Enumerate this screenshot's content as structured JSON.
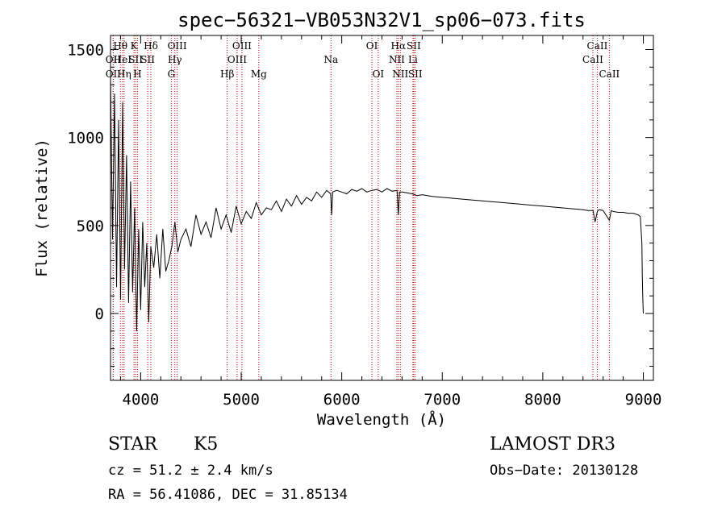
{
  "chart_data": {
    "type": "line",
    "title": "spec−56321−VB053N32V1_sp06−073.fits",
    "xlabel": "Wavelength (Å)",
    "ylabel": "Flux (relative)",
    "xlim": [
      3700,
      9100
    ],
    "ylim": [
      -380,
      1580
    ],
    "xticks": [
      4000,
      5000,
      6000,
      7000,
      8000,
      9000
    ],
    "xtick_labels": [
      "4000",
      "5000",
      "6000",
      "7000",
      "8000",
      "9000"
    ],
    "yticks": [
      0,
      500,
      1000,
      1500
    ],
    "ytick_labels": [
      "0",
      "500",
      "1000",
      "1500"
    ],
    "series": [
      {
        "name": "spectrum",
        "x": [
          3700,
          3720,
          3740,
          3760,
          3780,
          3800,
          3820,
          3840,
          3860,
          3880,
          3900,
          3920,
          3940,
          3960,
          3980,
          4000,
          4020,
          4040,
          4060,
          4080,
          4100,
          4130,
          4160,
          4190,
          4220,
          4250,
          4280,
          4310,
          4340,
          4370,
          4400,
          4450,
          4500,
          4550,
          4600,
          4650,
          4700,
          4750,
          4800,
          4850,
          4900,
          4950,
          5000,
          5050,
          5100,
          5150,
          5200,
          5250,
          5300,
          5350,
          5400,
          5450,
          5500,
          5550,
          5600,
          5650,
          5700,
          5750,
          5800,
          5850,
          5890,
          5900,
          5910,
          5950,
          6000,
          6050,
          6100,
          6150,
          6200,
          6250,
          6300,
          6350,
          6400,
          6450,
          6500,
          6550,
          6563,
          6575,
          6600,
          6650,
          6700,
          6750,
          6800,
          6900,
          7000,
          7100,
          7200,
          7300,
          7400,
          7500,
          7600,
          7700,
          7800,
          7900,
          8000,
          8100,
          8200,
          8300,
          8400,
          8450,
          8500,
          8520,
          8542,
          8560,
          8600,
          8662,
          8680,
          8700,
          8750,
          8800,
          8850,
          8900,
          8950,
          8970,
          8985,
          8990,
          8995,
          9000
        ],
        "y": [
          1350,
          420,
          1250,
          150,
          1100,
          80,
          1200,
          250,
          900,
          60,
          750,
          120,
          600,
          -100,
          480,
          20,
          520,
          150,
          400,
          -50,
          380,
          260,
          450,
          200,
          480,
          240,
          300,
          380,
          520,
          350,
          420,
          480,
          380,
          560,
          450,
          520,
          430,
          600,
          480,
          560,
          460,
          610,
          510,
          580,
          540,
          630,
          560,
          600,
          590,
          640,
          580,
          650,
          610,
          670,
          620,
          660,
          640,
          690,
          660,
          700,
          680,
          560,
          690,
          700,
          690,
          680,
          705,
          695,
          710,
          690,
          700,
          705,
          690,
          710,
          695,
          700,
          560,
          690,
          690,
          685,
          680,
          670,
          675,
          665,
          660,
          655,
          650,
          645,
          640,
          635,
          630,
          625,
          620,
          615,
          610,
          605,
          600,
          595,
          590,
          585,
          585,
          520,
          580,
          590,
          585,
          530,
          585,
          580,
          575,
          575,
          570,
          570,
          560,
          550,
          400,
          200,
          80,
          0
        ]
      }
    ],
    "spectral_lines": [
      {
        "label": "OII",
        "wavelength": 3727,
        "row": 2
      },
      {
        "label": "OII",
        "wavelength": 3727,
        "row": 3
      },
      {
        "label": "Hθ",
        "wavelength": 3798,
        "row": 1
      },
      {
        "label": "HeI",
        "wavelength": 3820,
        "row": 2
      },
      {
        "label": "Hη",
        "wavelength": 3835,
        "row": 3
      },
      {
        "label": "K",
        "wavelength": 3934,
        "row": 1
      },
      {
        "label": "SII",
        "wavelength": 3950,
        "row": 2
      },
      {
        "label": "H",
        "wavelength": 3968,
        "row": 3
      },
      {
        "label": "Hδ",
        "wavelength": 4101,
        "row": 1
      },
      {
        "label": "SII",
        "wavelength": 4070,
        "row": 2
      },
      {
        "label": "OIII",
        "wavelength": 4363,
        "row": 1
      },
      {
        "label": "Hγ",
        "wavelength": 4340,
        "row": 2
      },
      {
        "label": "G",
        "wavelength": 4305,
        "row": 3
      },
      {
        "label": "Hβ",
        "wavelength": 4861,
        "row": 3
      },
      {
        "label": "OIII",
        "wavelength": 5007,
        "row": 1
      },
      {
        "label": "OIII",
        "wavelength": 4959,
        "row": 2
      },
      {
        "label": "Mg",
        "wavelength": 5175,
        "row": 3
      },
      {
        "label": "Na",
        "wavelength": 5893,
        "row": 2
      },
      {
        "label": "OI",
        "wavelength": 6300,
        "row": 1
      },
      {
        "label": "OI",
        "wavelength": 6363,
        "row": 3
      },
      {
        "label": "Hα",
        "wavelength": 6563,
        "row": 1
      },
      {
        "label": "NII",
        "wavelength": 6548,
        "row": 2
      },
      {
        "label": "NII",
        "wavelength": 6583,
        "row": 3
      },
      {
        "label": "SII",
        "wavelength": 6716,
        "row": 1
      },
      {
        "label": "Li",
        "wavelength": 6708,
        "row": 2
      },
      {
        "label": "SII",
        "wavelength": 6731,
        "row": 3
      },
      {
        "label": "CaII",
        "wavelength": 8542,
        "row": 1
      },
      {
        "label": "CaII",
        "wavelength": 8498,
        "row": 2
      },
      {
        "label": "CaII",
        "wavelength": 8662,
        "row": 3
      }
    ],
    "spectral_line_color": "#c00000"
  },
  "footer": {
    "class_label": "STAR",
    "subclass": "K5",
    "redshift": "cz = 51.2 ± 2.4 km/s",
    "coords": "RA =  56.41086, DEC =  31.85134",
    "survey": "LAMOST DR3",
    "obs_date": "Obs−Date: 20130128"
  }
}
